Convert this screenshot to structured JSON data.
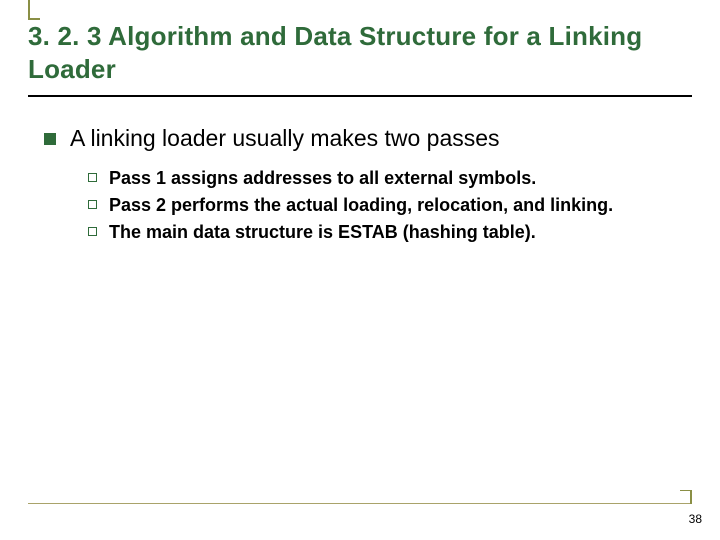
{
  "slide": {
    "section_number": "3. 2. 3",
    "title": "3. 2. 3  Algorithm and Data Structure for a Linking Loader",
    "title_color": "#2f6b3a",
    "title_fontsize": 26,
    "underline_color": "#000000",
    "accent_color": "#8a8f45",
    "bottom_rule_color": "#a9a36a",
    "background_color": "#ffffff"
  },
  "content": {
    "lvl1_text": "A linking loader usually makes two passes",
    "lvl1_bullet_color": "#2f6b3a",
    "lvl1_fontsize": 23,
    "lvl2_items": [
      "Pass 1 assigns addresses to all external symbols.",
      "Pass 2 performs the actual loading, relocation, and linking.",
      "The main data structure is ESTAB (hashing table)."
    ],
    "lvl2_bullet_border_color": "#2f6b3a",
    "lvl2_fontsize": 18,
    "lvl2_fontweight": "bold"
  },
  "page_number": "38"
}
